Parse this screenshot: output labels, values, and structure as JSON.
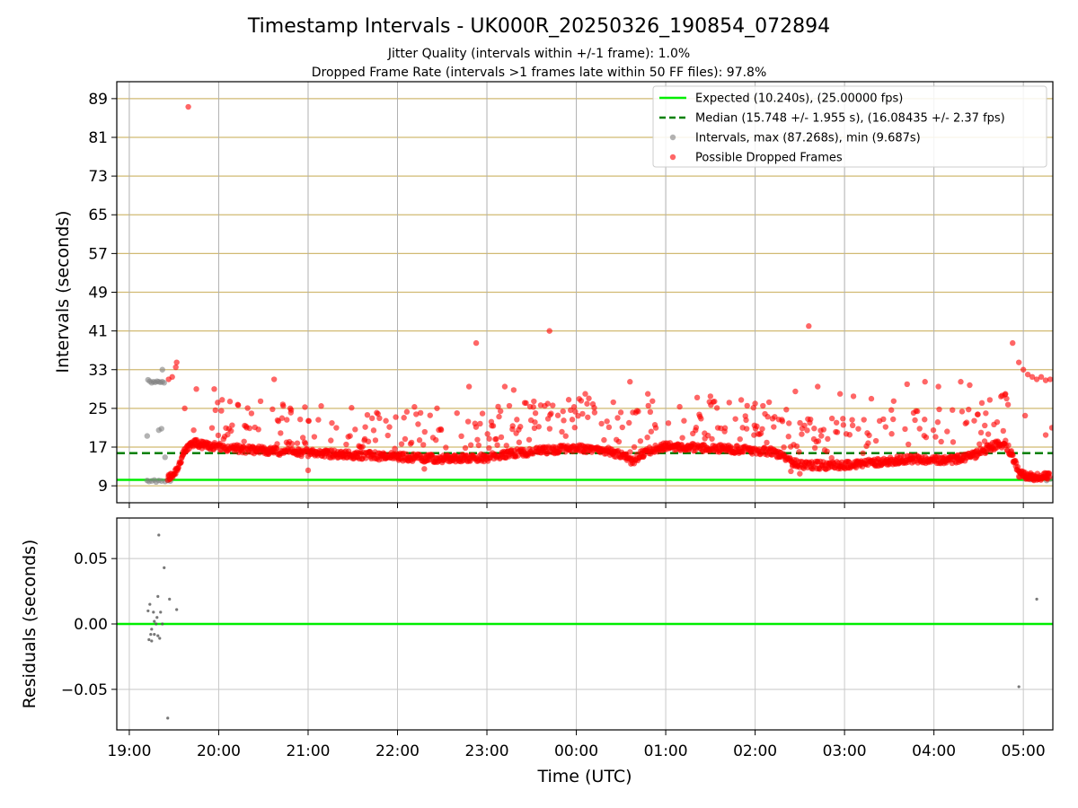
{
  "chart_data": {
    "type": "scatter",
    "title": "Timestamp Intervals - UK000R_20250326_190854_072894",
    "subtitle_lines": [
      "Jitter Quality (intervals within +/-1 frame): 1.0%",
      "Dropped Frame Rate (intervals >1 frames late within 50 FF files): 97.8%"
    ],
    "xlabel": "Time (UTC)",
    "x_ticks": [
      "19:00",
      "20:00",
      "21:00",
      "22:00",
      "23:00",
      "00:00",
      "01:00",
      "02:00",
      "03:00",
      "04:00",
      "05:00"
    ],
    "x_range_hours": [
      18.86,
      29.33
    ],
    "top_panel": {
      "ylabel": "Intervals (seconds)",
      "ylim": [
        5.5,
        92.5
      ],
      "y_ticks": [
        9,
        17,
        25,
        33,
        41,
        49,
        57,
        65,
        73,
        81,
        89
      ],
      "grid": "horizontal gold lines at y ticks, vertical grey lines at x ticks",
      "expected_interval": 10.24,
      "median_interval": 15.748,
      "legend_position": "top-right",
      "legend": [
        {
          "label": "Expected (10.240s), (25.00000 fps)",
          "color": "#00ee00",
          "style": "solid-line"
        },
        {
          "label": "Median (15.748 +/- 1.955 s), (16.08435 +/- 2.37 fps)",
          "color": "#008000",
          "style": "dashed-line"
        },
        {
          "label": "Intervals, max (87.268s), min (9.687s)",
          "color": "#808080",
          "style": "dot"
        },
        {
          "label": "Possible Dropped Frames",
          "color": "#ff0000",
          "style": "dot"
        }
      ],
      "intervals_grey": [
        [
          19.2,
          10.1
        ],
        [
          19.22,
          9.9
        ],
        [
          19.25,
          10.0
        ],
        [
          19.28,
          10.2
        ],
        [
          19.3,
          9.8
        ],
        [
          19.33,
          10.1
        ],
        [
          19.36,
          10.0
        ],
        [
          19.4,
          9.9
        ],
        [
          19.43,
          10.1
        ],
        [
          19.46,
          10.0
        ],
        [
          19.21,
          30.9
        ],
        [
          19.23,
          30.6
        ],
        [
          19.25,
          30.3
        ],
        [
          19.27,
          30.5
        ],
        [
          19.29,
          30.4
        ],
        [
          19.31,
          30.6
        ],
        [
          19.33,
          30.5
        ],
        [
          19.35,
          30.4
        ],
        [
          19.37,
          30.5
        ],
        [
          19.39,
          30.3
        ],
        [
          19.2,
          19.3
        ],
        [
          19.33,
          20.5
        ],
        [
          19.36,
          20.8
        ],
        [
          19.37,
          33.0
        ],
        [
          19.4,
          14.9
        ],
        [
          29.02,
          10.5
        ],
        [
          29.08,
          10.3
        ],
        [
          29.18,
          10.6
        ],
        [
          29.26,
          10.1
        ],
        [
          29.3,
          10.4
        ]
      ],
      "dropped_frames_red": {
        "baseline_profile": [
          [
            19.43,
            10.5
          ],
          [
            19.5,
            11.5
          ],
          [
            19.56,
            13.5
          ],
          [
            19.62,
            16.0
          ],
          [
            19.7,
            18.0
          ],
          [
            19.8,
            17.5
          ],
          [
            20.0,
            17.0
          ],
          [
            20.5,
            16.3
          ],
          [
            21.0,
            15.8
          ],
          [
            21.5,
            15.4
          ],
          [
            22.0,
            15.0
          ],
          [
            22.5,
            14.6
          ],
          [
            23.0,
            14.8
          ],
          [
            23.3,
            15.8
          ],
          [
            23.6,
            16.2
          ],
          [
            24.0,
            16.8
          ],
          [
            24.3,
            16.5
          ],
          [
            24.55,
            15.0
          ],
          [
            24.62,
            14.0
          ],
          [
            24.7,
            15.2
          ],
          [
            24.85,
            16.5
          ],
          [
            25.0,
            17.2
          ],
          [
            25.3,
            16.9
          ],
          [
            25.6,
            16.7
          ],
          [
            25.9,
            16.4
          ],
          [
            26.2,
            16.0
          ],
          [
            26.3,
            15.0
          ],
          [
            26.4,
            14.0
          ],
          [
            26.5,
            13.3
          ],
          [
            27.0,
            13.2
          ],
          [
            27.3,
            13.8
          ],
          [
            27.7,
            14.5
          ],
          [
            28.2,
            14.4
          ],
          [
            28.4,
            15.0
          ],
          [
            28.7,
            17.5
          ],
          [
            28.8,
            17.8
          ],
          [
            28.88,
            15.0
          ],
          [
            28.95,
            11.5
          ],
          [
            29.05,
            10.9
          ],
          [
            29.3,
            10.9
          ]
        ],
        "baseline_spread": 0.8,
        "scatter_fraction": 0.2,
        "outliers": [
          [
            19.66,
            87.3
          ],
          [
            19.53,
            34.5
          ],
          [
            19.52,
            33.5
          ],
          [
            19.48,
            31.5
          ],
          [
            19.44,
            31.0
          ],
          [
            19.62,
            25.0
          ],
          [
            19.75,
            29.0
          ],
          [
            19.95,
            29.0
          ],
          [
            20.62,
            31.0
          ],
          [
            20.8,
            25.0
          ],
          [
            21.0,
            12.2
          ],
          [
            22.3,
            12.5
          ],
          [
            22.88,
            38.5
          ],
          [
            22.8,
            29.5
          ],
          [
            23.7,
            41.0
          ],
          [
            23.2,
            29.5
          ],
          [
            23.3,
            28.8
          ],
          [
            24.1,
            28.0
          ],
          [
            24.6,
            30.5
          ],
          [
            24.8,
            28.0
          ],
          [
            25.5,
            27.5
          ],
          [
            26.0,
            26.0
          ],
          [
            26.6,
            42.0
          ],
          [
            26.45,
            28.5
          ],
          [
            26.7,
            29.5
          ],
          [
            26.95,
            28.0
          ],
          [
            27.1,
            27.5
          ],
          [
            27.3,
            27.0
          ],
          [
            27.55,
            26.5
          ],
          [
            27.7,
            30.0
          ],
          [
            27.9,
            30.5
          ],
          [
            28.05,
            29.5
          ],
          [
            28.3,
            30.5
          ],
          [
            28.4,
            29.8
          ],
          [
            28.58,
            24.0
          ],
          [
            28.8,
            28.0
          ],
          [
            28.88,
            38.5
          ],
          [
            28.95,
            34.5
          ],
          [
            29.0,
            33.0
          ],
          [
            29.05,
            32.0
          ],
          [
            29.1,
            31.5
          ],
          [
            29.15,
            31.0
          ],
          [
            29.2,
            31.5
          ],
          [
            29.25,
            30.8
          ],
          [
            29.3,
            31.0
          ],
          [
            29.32,
            21.0
          ],
          [
            29.25,
            19.5
          ],
          [
            29.02,
            23.5
          ],
          [
            26.5,
            11.5
          ],
          [
            26.4,
            12.0
          ]
        ]
      }
    },
    "bottom_panel": {
      "ylabel": "Residuals (seconds)",
      "ylim": [
        -0.081,
        0.081
      ],
      "y_ticks": [
        0.05,
        0.0,
        -0.05
      ],
      "y_tick_labels": [
        "0.05",
        "0.00",
        "−0.05"
      ],
      "zero_line_color": "#00ee00",
      "residuals": [
        [
          19.33,
          0.068
        ],
        [
          19.39,
          0.043
        ],
        [
          19.32,
          0.021
        ],
        [
          19.45,
          0.019
        ],
        [
          19.23,
          0.015
        ],
        [
          19.21,
          0.01
        ],
        [
          19.27,
          0.009
        ],
        [
          19.35,
          0.009
        ],
        [
          19.53,
          0.011
        ],
        [
          19.31,
          0.005
        ],
        [
          19.28,
          0.002
        ],
        [
          19.3,
          0.0
        ],
        [
          19.37,
          0.0
        ],
        [
          19.25,
          -0.004
        ],
        [
          19.24,
          -0.008
        ],
        [
          19.28,
          -0.008
        ],
        [
          19.32,
          -0.009
        ],
        [
          19.34,
          -0.011
        ],
        [
          19.22,
          -0.012
        ],
        [
          19.25,
          -0.013
        ],
        [
          19.43,
          -0.072
        ],
        [
          29.15,
          0.019
        ],
        [
          28.95,
          -0.048
        ]
      ]
    }
  }
}
